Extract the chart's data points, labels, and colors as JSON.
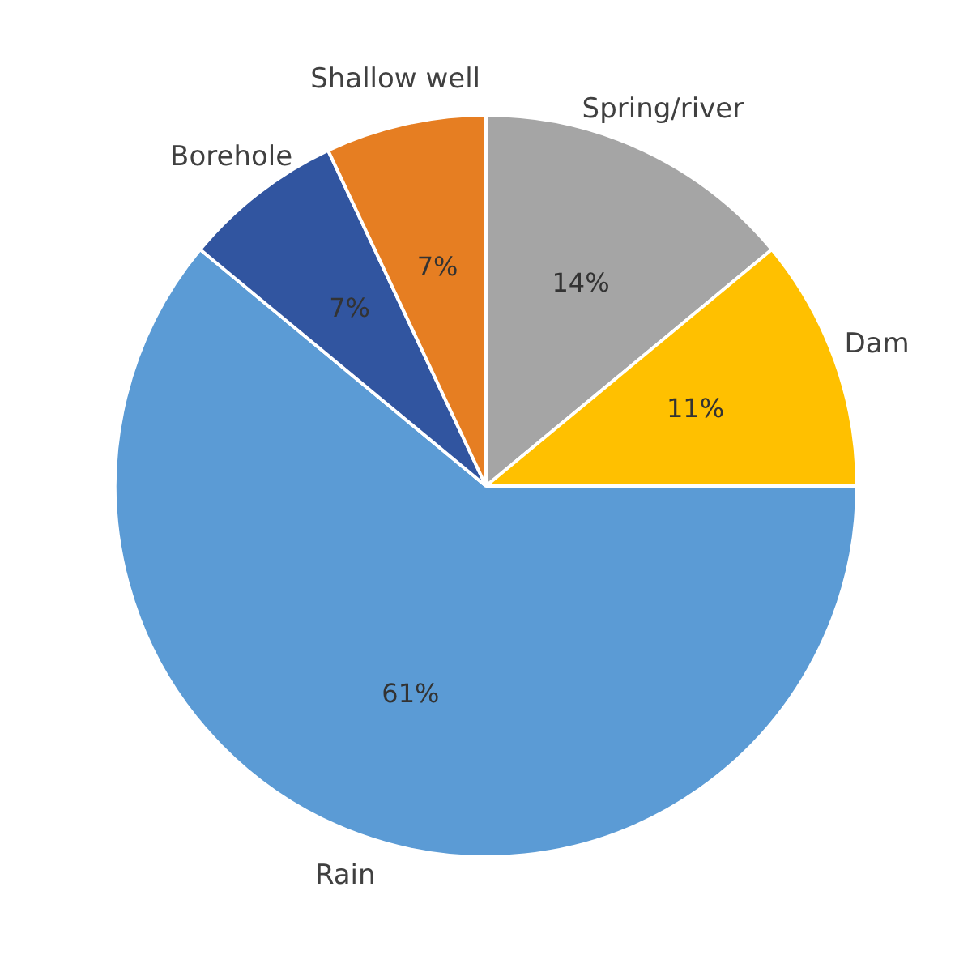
{
  "chart_data": {
    "type": "pie",
    "categories": [
      "Spring/river",
      "Dam",
      "Rain",
      "Borehole",
      "Shallow well"
    ],
    "values": [
      14,
      11,
      61,
      7,
      7
    ],
    "value_labels": [
      "14%",
      "11%",
      "61%",
      "7%",
      "7%"
    ],
    "colors": [
      "#a5a5a5",
      "#ffc000",
      "#5b9bd5",
      "#3155a0",
      "#e67e22"
    ],
    "legend": false
  }
}
